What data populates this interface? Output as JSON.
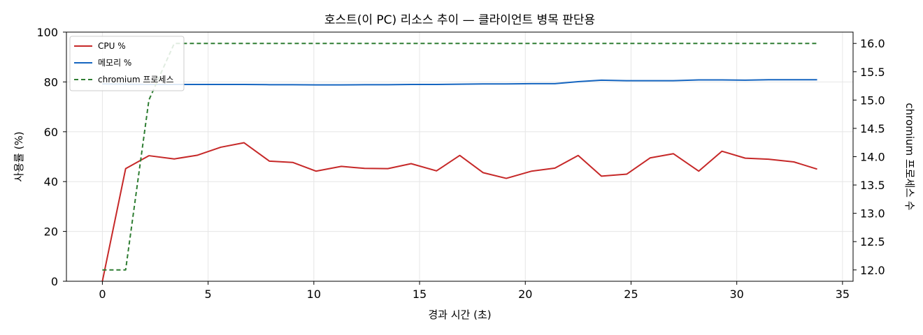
{
  "chart_data": {
    "type": "line",
    "title": "호스트(이 PC) 리소스 추이 — 클라이언트 병목 판단용",
    "xlabel": "경과 시간 (초)",
    "ylabel": "사용률 (%)",
    "y2label": "chromium 프로세스 수",
    "xlim": [
      -1.7,
      35.5
    ],
    "ylim": [
      0,
      100
    ],
    "y2lim": [
      11.8,
      16.2
    ],
    "xticks": [
      0,
      5,
      10,
      15,
      20,
      25,
      30,
      35
    ],
    "yticks": [
      0,
      20,
      40,
      60,
      80,
      100
    ],
    "y2ticks": [
      12.0,
      12.5,
      13.0,
      13.5,
      14.0,
      14.5,
      15.0,
      15.5,
      16.0
    ],
    "grid": true,
    "legend": "top-left",
    "x": [
      0,
      1.1,
      2.2,
      3.4,
      4.5,
      5.6,
      6.7,
      7.9,
      9.0,
      10.1,
      11.3,
      12.4,
      13.5,
      14.6,
      15.8,
      16.9,
      18.0,
      19.1,
      20.3,
      21.4,
      22.5,
      23.6,
      24.8,
      25.9,
      27.0,
      28.2,
      29.3,
      30.4,
      31.5,
      32.7,
      33.8
    ],
    "series": [
      {
        "name": "CPU %",
        "axis": "left",
        "color": "#c62828",
        "style": "solid",
        "values": [
          0,
          45.2,
          50.4,
          49.1,
          50.6,
          53.8,
          55.6,
          48.2,
          47.7,
          44.2,
          46.1,
          45.3,
          45.2,
          47.2,
          44.3,
          50.5,
          43.6,
          41.3,
          44.2,
          45.4,
          50.5,
          42.2,
          43.0,
          49.5,
          51.2,
          44.2,
          52.2,
          49.4,
          49.0,
          47.9,
          45.0
        ]
      },
      {
        "name": "메모리 %",
        "axis": "left",
        "color": "#1565c0",
        "style": "solid",
        "values": [
          79.2,
          79.1,
          79.0,
          79.0,
          79.0,
          79.0,
          79.0,
          78.9,
          78.9,
          78.8,
          78.8,
          78.9,
          78.9,
          79.0,
          79.0,
          79.1,
          79.2,
          79.2,
          79.3,
          79.3,
          80.1,
          80.7,
          80.5,
          80.5,
          80.5,
          80.8,
          80.8,
          80.7,
          80.9,
          80.9,
          80.9
        ]
      },
      {
        "name": "chromium 프로세스",
        "axis": "right",
        "color": "#2e7d32",
        "style": "dashed",
        "values": [
          12,
          12,
          15,
          16,
          16,
          16,
          16,
          16,
          16,
          16,
          16,
          16,
          16,
          16,
          16,
          16,
          16,
          16,
          16,
          16,
          16,
          16,
          16,
          16,
          16,
          16,
          16,
          16,
          16,
          16,
          16
        ]
      }
    ]
  }
}
